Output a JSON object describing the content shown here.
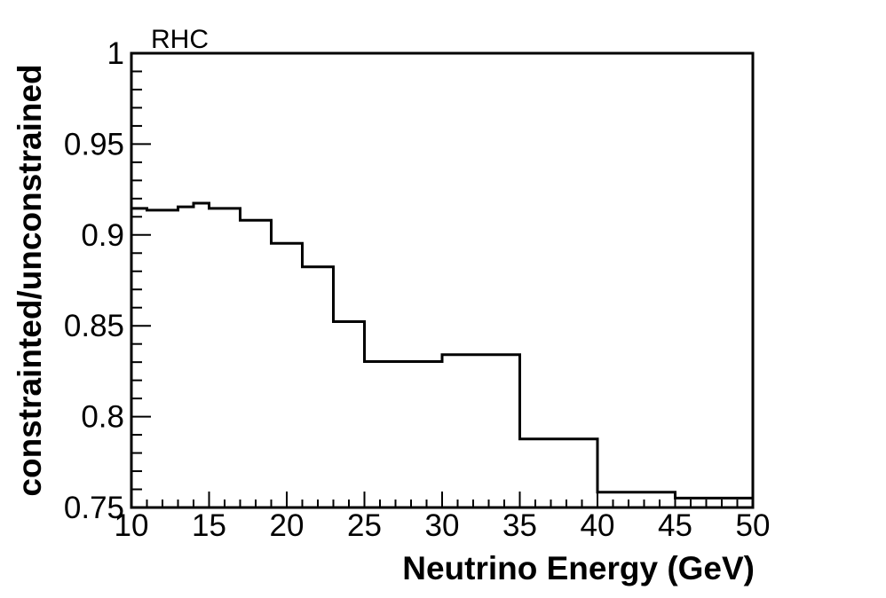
{
  "figure": {
    "background": "#ffffff",
    "foreground": "#000000"
  },
  "plot_title": "RHC",
  "chart_data": {
    "type": "line",
    "style": "step-histogram",
    "title": "RHC",
    "xlabel": "Neutrino Energy (GeV)",
    "ylabel": "constrainted/unconstrained",
    "xlim": [
      10,
      50
    ],
    "ylim": [
      0.75,
      1.0
    ],
    "grid": false,
    "legend": "none",
    "line_color": "#000000",
    "line_width": 3,
    "bin_edges": [
      10,
      11,
      12,
      13,
      14,
      15,
      17,
      19,
      21,
      23,
      25,
      30,
      35,
      40,
      45,
      50
    ],
    "values": [
      0.9146,
      0.9136,
      0.9136,
      0.9155,
      0.9175,
      0.9146,
      0.9081,
      0.8954,
      0.8824,
      0.8523,
      0.8303,
      0.8341,
      0.7877,
      0.7584,
      0.7552
    ],
    "x_major_ticks": [
      10,
      15,
      20,
      25,
      30,
      35,
      40,
      45,
      50
    ],
    "x_major_tick_labels": [
      "10",
      "15",
      "20",
      "25",
      "30",
      "35",
      "40",
      "45",
      "50"
    ],
    "x_minor_tick_step": 1,
    "y_major_ticks": [
      0.75,
      0.8,
      0.85,
      0.9,
      0.95,
      1.0
    ],
    "y_major_tick_labels": [
      "0.75",
      "0.8",
      "0.85",
      "0.9",
      "0.95",
      "1"
    ],
    "y_minor_tick_step": 0.01
  }
}
